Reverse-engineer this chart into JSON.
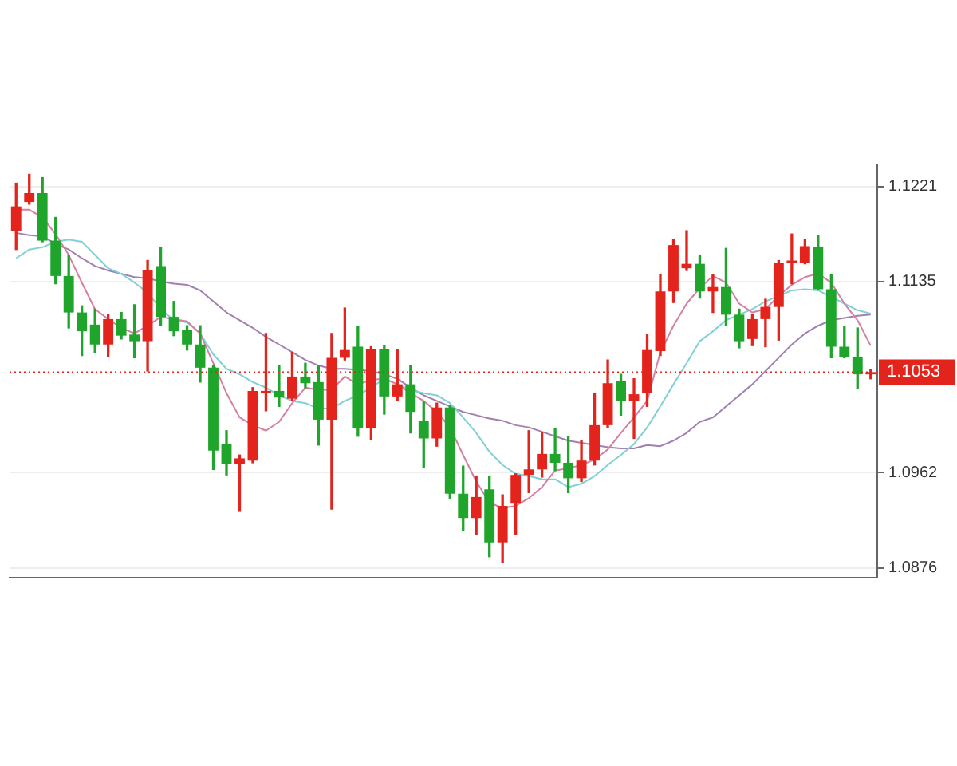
{
  "chart_data": {
    "type": "candlestick",
    "categories": [
      null,
      null,
      null,
      null,
      null,
      null,
      null,
      null,
      null,
      null,
      null,
      null,
      null,
      null,
      null,
      null,
      null,
      null,
      null,
      null,
      null,
      null,
      null,
      null,
      null,
      null,
      null,
      null,
      null,
      null,
      null,
      null,
      null,
      null,
      null,
      null,
      null,
      null,
      null,
      null,
      null,
      null,
      null,
      null,
      null,
      null,
      null,
      null,
      null,
      null,
      null,
      null,
      null,
      null,
      null,
      null,
      null,
      null,
      null,
      null,
      null,
      null,
      null,
      null,
      null,
      null
    ],
    "ylim": [
      1.0867,
      1.1241
    ],
    "yticks": [
      1.1221,
      1.1135,
      1.0962,
      1.0876
    ],
    "grid": "y",
    "tick_labels": "y",
    "marker": "none",
    "ohlc": [
      [
        1.1181,
        1.1224,
        1.1164,
        1.1203
      ],
      [
        1.1207,
        1.1232,
        1.1205,
        1.1215
      ],
      [
        1.1215,
        1.1229,
        1.1171,
        1.1172
      ],
      [
        1.1172,
        1.1193,
        1.1133,
        1.114
      ],
      [
        1.114,
        1.1159,
        1.1093,
        1.1107
      ],
      [
        1.1107,
        1.1113,
        1.1068,
        1.109
      ],
      [
        1.1096,
        1.111,
        1.1071,
        1.1078
      ],
      [
        1.1078,
        1.1105,
        1.1067,
        1.1101
      ],
      [
        1.1101,
        1.1107,
        1.1083,
        1.1086
      ],
      [
        1.1087,
        1.1114,
        1.1066,
        1.1081
      ],
      [
        1.1081,
        1.1154,
        1.1054,
        1.1145
      ],
      [
        1.1149,
        1.1166,
        1.1095,
        1.1103
      ],
      [
        1.1103,
        1.1117,
        1.1086,
        1.109
      ],
      [
        1.1091,
        1.1095,
        1.1073,
        1.1078
      ],
      [
        1.1078,
        1.1095,
        1.1044,
        1.1057
      ],
      [
        1.1057,
        1.1059,
        1.0965,
        1.0982
      ],
      [
        1.0988,
        1.1,
        1.096,
        1.097
      ],
      [
        1.097,
        1.0978,
        1.0927,
        1.0975
      ],
      [
        1.0973,
        1.1039,
        1.0971,
        1.1036
      ],
      [
        1.1034,
        1.1088,
        1.1018,
        1.1036
      ],
      [
        1.1036,
        1.1059,
        1.1022,
        1.103
      ],
      [
        1.1029,
        1.1071,
        1.1027,
        1.1049
      ],
      [
        1.1049,
        1.1061,
        1.1039,
        1.1043
      ],
      [
        1.1044,
        1.1059,
        1.0987,
        1.101
      ],
      [
        1.101,
        1.1088,
        1.0929,
        1.1066
      ],
      [
        1.1066,
        1.1111,
        1.1064,
        1.1073
      ],
      [
        1.1076,
        1.1094,
        1.0995,
        1.1002
      ],
      [
        1.1002,
        1.1076,
        1.0992,
        1.1074
      ],
      [
        1.1074,
        1.1077,
        1.1015,
        1.1031
      ],
      [
        1.1031,
        1.1073,
        1.1027,
        1.1042
      ],
      [
        1.1042,
        1.1059,
        1.0998,
        1.1017
      ],
      [
        1.1009,
        1.1026,
        1.0967,
        1.0993
      ],
      [
        1.0993,
        1.1025,
        1.0986,
        1.1021
      ],
      [
        1.1021,
        1.1023,
        1.0939,
        1.0943
      ],
      [
        1.0943,
        1.0968,
        1.091,
        1.0921
      ],
      [
        1.0921,
        1.0959,
        1.0906,
        1.094
      ],
      [
        1.0947,
        1.0959,
        1.0886,
        1.0899
      ],
      [
        1.0899,
        1.0942,
        1.0881,
        1.0932
      ],
      [
        1.0934,
        1.0961,
        1.0906,
        1.096
      ],
      [
        1.096,
        1.1,
        1.0944,
        1.0965
      ],
      [
        1.0965,
        1.0998,
        1.0958,
        1.0979
      ],
      [
        1.0979,
        1.1002,
        1.0964,
        1.0971
      ],
      [
        1.0971,
        1.0995,
        1.0944,
        1.0957
      ],
      [
        1.0957,
        1.0991,
        1.0954,
        1.0973
      ],
      [
        1.0973,
        1.1034,
        1.0969,
        1.1005
      ],
      [
        1.1005,
        1.1064,
        1.1003,
        1.1043
      ],
      [
        1.1045,
        1.1051,
        1.1014,
        1.1027
      ],
      [
        1.1027,
        1.1047,
        1.0993,
        1.1033
      ],
      [
        1.1034,
        1.1087,
        1.1022,
        1.1073
      ],
      [
        1.1072,
        1.1141,
        1.1068,
        1.1126
      ],
      [
        1.1126,
        1.1173,
        1.1116,
        1.1168
      ],
      [
        1.1147,
        1.1181,
        1.1145,
        1.1151
      ],
      [
        1.1151,
        1.1159,
        1.112,
        1.1126
      ],
      [
        1.1126,
        1.1141,
        1.1107,
        1.113
      ],
      [
        1.113,
        1.1165,
        1.1095,
        1.1105
      ],
      [
        1.1105,
        1.111,
        1.1075,
        1.1081
      ],
      [
        1.1083,
        1.1105,
        1.1077,
        1.1101
      ],
      [
        1.1101,
        1.1119,
        1.1076,
        1.1112
      ],
      [
        1.1112,
        1.1154,
        1.1082,
        1.1152
      ],
      [
        1.1152,
        1.1178,
        1.1133,
        1.1154
      ],
      [
        1.1152,
        1.1173,
        1.1151,
        1.1167
      ],
      [
        1.1166,
        1.1177,
        1.1128,
        1.1128
      ],
      [
        1.1128,
        1.1141,
        1.1066,
        1.1076
      ],
      [
        1.1076,
        1.1094,
        1.1066,
        1.1067
      ],
      [
        1.1067,
        1.1093,
        1.1038,
        1.1051
      ],
      [
        1.1051,
        1.1055,
        1.1047,
        1.1053
      ]
    ],
    "colors": [
      "#e3241c",
      "#e3241c",
      "#1fa52c",
      "#1fa52c",
      "#1fa52c",
      "#1fa52c",
      "#1fa52c",
      "#e3241c",
      "#1fa52c",
      "#1fa52c",
      "#e3241c",
      "#1fa52c",
      "#1fa52c",
      "#1fa52c",
      "#1fa52c",
      "#1fa52c",
      "#1fa52c",
      "#e3241c",
      "#e3241c",
      "#e3241c",
      "#1fa52c",
      "#e3241c",
      "#1fa52c",
      "#1fa52c",
      "#e3241c",
      "#e3241c",
      "#1fa52c",
      "#e3241c",
      "#1fa52c",
      "#e3241c",
      "#1fa52c",
      "#1fa52c",
      "#e3241c",
      "#1fa52c",
      "#1fa52c",
      "#e3241c",
      "#1fa52c",
      "#e3241c",
      "#e3241c",
      "#e3241c",
      "#e3241c",
      "#1fa52c",
      "#1fa52c",
      "#e3241c",
      "#e3241c",
      "#e3241c",
      "#1fa52c",
      "#e3241c",
      "#e3241c",
      "#e3241c",
      "#e3241c",
      "#e3241c",
      "#1fa52c",
      "#e3241c",
      "#1fa52c",
      "#1fa52c",
      "#e3241c",
      "#e3241c",
      "#e3241c",
      "#e3241c",
      "#e3241c",
      "#1fa52c",
      "#1fa52c",
      "#1fa52c",
      "#1fa52c",
      "#e3241c"
    ],
    "series": [
      {
        "type": "line",
        "color": "#d67fa3",
        "values": [
          1.12,
          1.12,
          1.1193,
          1.1178,
          1.1159,
          1.1134,
          1.111,
          1.1101,
          1.1093,
          1.1088,
          1.1095,
          1.1103,
          1.1101,
          1.1099,
          1.1088,
          1.1061,
          1.1034,
          1.1012,
          1.1005,
          1.1,
          1.1008,
          1.1025,
          1.1039,
          1.1037,
          1.1037,
          1.1049,
          1.1042,
          1.1046,
          1.1047,
          1.1042,
          1.1034,
          1.1027,
          1.1017,
          1.1003,
          1.0978,
          1.0954,
          1.0935,
          1.093,
          1.0932,
          1.0939,
          1.0949,
          1.0964,
          1.0966,
          1.0969,
          1.0974,
          1.0983,
          1.0998,
          1.1012,
          1.1027,
          1.1071,
          1.1095,
          1.1115,
          1.1129,
          1.114,
          1.1134,
          1.1115,
          1.1107,
          1.111,
          1.1122,
          1.1132,
          1.1139,
          1.1142,
          1.1134,
          1.1115,
          1.11,
          1.1077
        ]
      },
      {
        "type": "line",
        "color": "#7fd1d6",
        "values": [
          1.1156,
          1.1164,
          1.1166,
          1.1171,
          1.1173,
          1.1171,
          1.1159,
          1.1147,
          1.1142,
          1.1134,
          1.1125,
          1.111,
          1.11,
          1.1098,
          1.1088,
          1.1069,
          1.1056,
          1.1051,
          1.1044,
          1.1039,
          1.1032,
          1.1027,
          1.1025,
          1.102,
          1.102,
          1.1027,
          1.1032,
          1.1039,
          1.1047,
          1.1042,
          1.1037,
          1.1034,
          1.1032,
          1.1025,
          1.1012,
          1.0998,
          1.0981,
          1.0969,
          1.0961,
          1.0959,
          1.0956,
          1.0956,
          1.0949,
          1.0952,
          1.0959,
          1.0969,
          1.0978,
          1.0988,
          1.1003,
          1.1022,
          1.1042,
          1.1061,
          1.1081,
          1.109,
          1.11,
          1.1105,
          1.111,
          1.1117,
          1.1122,
          1.1127,
          1.1128,
          1.1127,
          1.1121,
          1.1115,
          1.1109,
          1.1106
        ]
      },
      {
        "type": "line",
        "color": "#a27fb3",
        "values": [
          1.1179,
          1.1177,
          1.1176,
          1.1169,
          1.1164,
          1.1156,
          1.1149,
          1.1145,
          1.1142,
          1.1139,
          1.1138,
          1.1135,
          1.1133,
          1.1132,
          1.1127,
          1.1117,
          1.1107,
          1.11,
          1.1093,
          1.1085,
          1.1078,
          1.1071,
          1.1064,
          1.1059,
          1.1056,
          1.1056,
          1.1055,
          1.1054,
          1.1051,
          1.1047,
          1.1039,
          1.1032,
          1.1027,
          1.1022,
          1.1017,
          1.1014,
          1.1011,
          1.1009,
          1.1005,
          1.1003,
          1.0999,
          1.0995,
          1.0991,
          1.0989,
          1.0987,
          1.0985,
          1.0984,
          1.0984,
          1.0987,
          1.0986,
          1.0991,
          1.0998,
          1.1008,
          1.1012,
          1.1022,
          1.1032,
          1.1042,
          1.1054,
          1.1066,
          1.1078,
          1.1088,
          1.1095,
          1.11,
          1.1102,
          1.1104,
          1.1105
        ]
      }
    ],
    "ref_lines": [
      {
        "axis": "y",
        "value": 1.1053,
        "label": "1.1053",
        "color": "#e3241c",
        "line_style": "dotted"
      }
    ]
  }
}
